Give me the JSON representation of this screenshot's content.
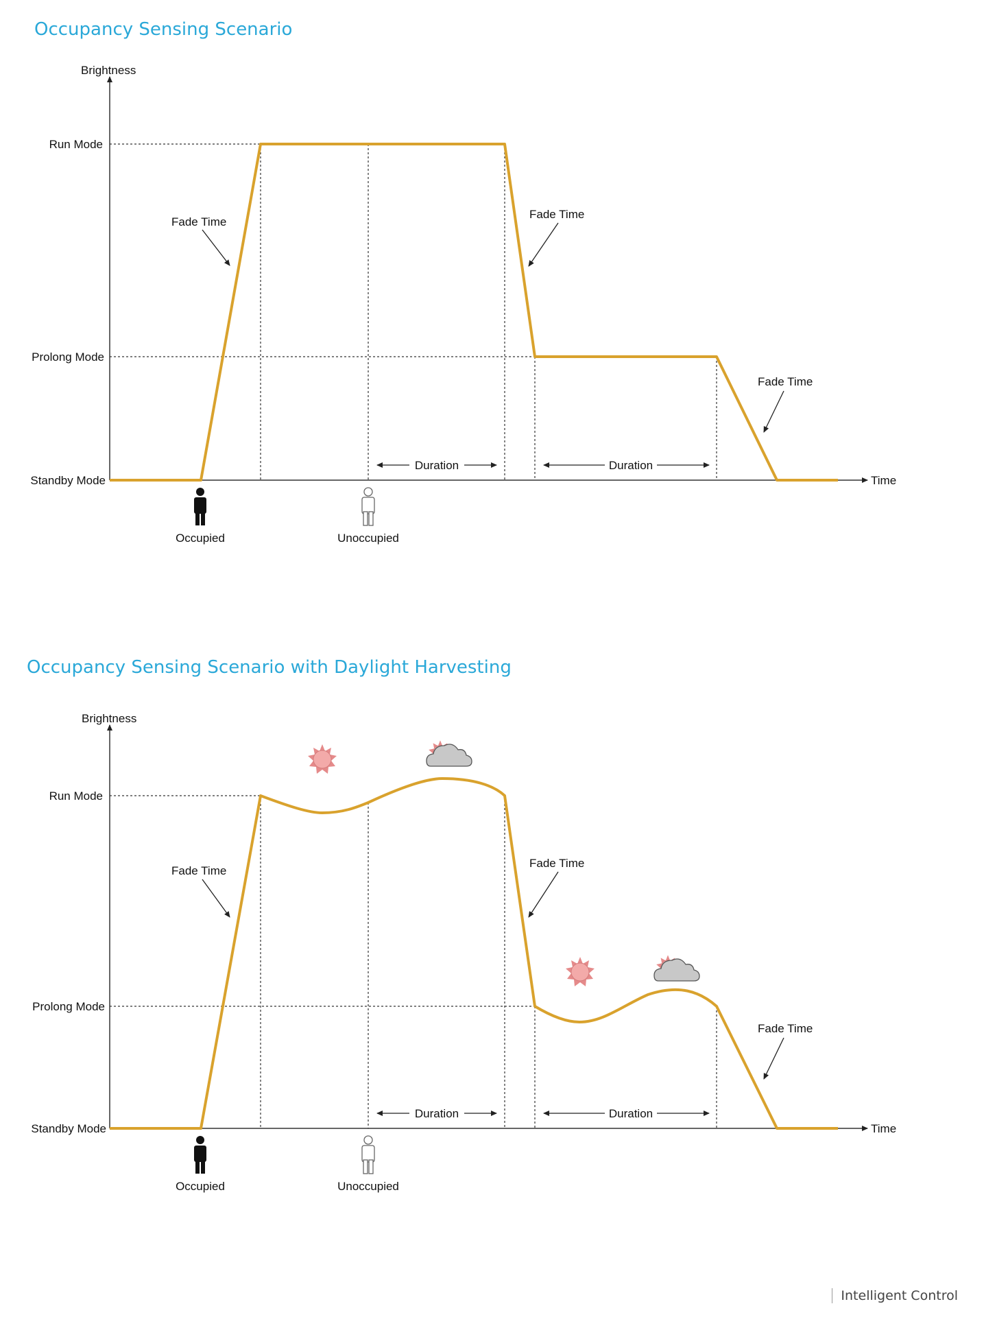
{
  "sections": [
    {
      "title": "Occupancy Sensing Scenario",
      "y_axis_label": "Brightness",
      "x_axis_label": "Time",
      "levels": {
        "run": "Run Mode",
        "prolong": "Prolong Mode",
        "standby": "Standby Mode"
      },
      "fade_labels": [
        "Fade Time",
        "Fade Time",
        "Fade Time"
      ],
      "duration_labels": [
        "Duration",
        "Duration"
      ],
      "occupied_label": "Occupied",
      "unoccupied_label": "Unoccupied",
      "daylight": false
    },
    {
      "title": "Occupancy Sensing Scenario with Daylight Harvesting",
      "y_axis_label": "Brightness",
      "x_axis_label": "Time",
      "levels": {
        "run": "Run Mode",
        "prolong": "Prolong Mode",
        "standby": "Standby Mode"
      },
      "fade_labels": [
        "Fade Time",
        "Fade Time",
        "Fade Time"
      ],
      "duration_labels": [
        "Duration",
        "Duration"
      ],
      "occupied_label": "Occupied",
      "unoccupied_label": "Unoccupied",
      "daylight": true,
      "daylight_icons": [
        "sun-icon",
        "sun-cloud-icon",
        "sun-icon",
        "sun-cloud-icon"
      ]
    }
  ],
  "colors": {
    "accent": "#2aa8d8",
    "curve": "#d9a22d",
    "sun": "#f0a0a0",
    "cloud": "#c8c8c8"
  },
  "footer": "Intelligent Control"
}
